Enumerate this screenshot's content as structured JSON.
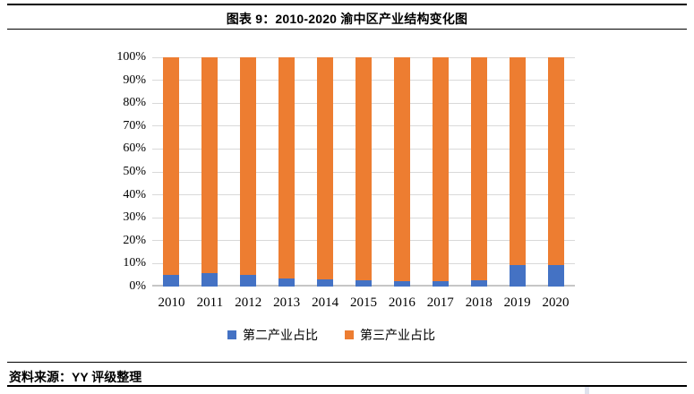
{
  "header": {
    "title": "图表 9：2010-2020 渝中区产业结构变化图"
  },
  "footer": {
    "source": "资料来源：YY 评级整理"
  },
  "colors": {
    "secondary_industry": "#4472C4",
    "tertiary_industry": "#ED7D31",
    "gridline": "#D9D9D9",
    "axis_line": "#C6C6C6",
    "rule": "#000000"
  },
  "chart_data": {
    "type": "bar",
    "stacked": true,
    "percent_stacked": true,
    "title": "",
    "xlabel": "",
    "ylabel": "",
    "ylim": [
      0,
      100
    ],
    "ytick_step": 10,
    "yticks": [
      "0%",
      "10%",
      "20%",
      "30%",
      "40%",
      "50%",
      "60%",
      "70%",
      "80%",
      "90%",
      "100%"
    ],
    "grid": true,
    "legend_position": "bottom",
    "categories": [
      "2010",
      "2011",
      "2012",
      "2013",
      "2014",
      "2015",
      "2016",
      "2017",
      "2018",
      "2019",
      "2020"
    ],
    "series": [
      {
        "name": "第二产业占比",
        "color": "#4472C4",
        "values": [
          5.0,
          5.7,
          5.1,
          3.4,
          3.3,
          2.8,
          2.4,
          2.4,
          2.9,
          9.4,
          9.4
        ]
      },
      {
        "name": "第三产业占比",
        "color": "#ED7D31",
        "values": [
          95.0,
          94.3,
          94.9,
          96.6,
          96.7,
          97.2,
          97.6,
          97.6,
          97.1,
          90.6,
          90.6
        ]
      }
    ]
  }
}
